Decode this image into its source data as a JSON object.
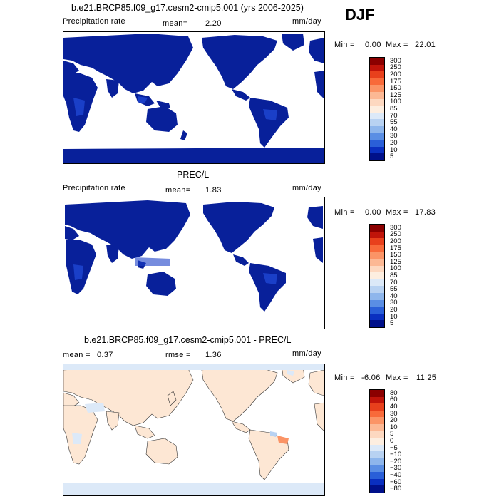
{
  "season": "DJF",
  "panels": [
    {
      "title": "b.e21.BRCP85.f09_g17.cesm2-cmip5.001 (yrs 2006-2025)",
      "left_label": "Precipitation rate",
      "mean_label": "mean=",
      "mean_value": "2.20",
      "units": "mm/day",
      "min_label": "Min =",
      "min_value": "0.00",
      "max_label": "Max =",
      "max_value": "22.01",
      "colorbar_ticks": [
        "300",
        "250",
        "200",
        "175",
        "150",
        "125",
        "100",
        "85",
        "70",
        "55",
        "40",
        "30",
        "20",
        "10",
        "5"
      ]
    },
    {
      "title": "PREC/L",
      "left_label": "Precipitation rate",
      "mean_label": "mean=",
      "mean_value": "1.83",
      "units": "mm/day",
      "min_label": "Min =",
      "min_value": "0.00",
      "max_label": "Max =",
      "max_value": "17.83",
      "colorbar_ticks": [
        "300",
        "250",
        "200",
        "175",
        "150",
        "125",
        "100",
        "85",
        "70",
        "55",
        "40",
        "30",
        "20",
        "10",
        "5"
      ]
    },
    {
      "title": "b.e21.BRCP85.f09_g17.cesm2-cmip5.001 - PREC/L",
      "mean_label": "mean =",
      "mean_value": "0.37",
      "rmse_label": "rmse =",
      "rmse_value": "1.36",
      "units": "mm/day",
      "min_label": "Min =",
      "min_value": "-6.06",
      "max_label": "Max =",
      "max_value": "11.25",
      "colorbar_ticks": [
        "80",
        "60",
        "40",
        "30",
        "20",
        "10",
        "5",
        "0",
        "−5",
        "−10",
        "−20",
        "−30",
        "−40",
        "−60",
        "−80"
      ]
    }
  ],
  "colors": {
    "abs_scale": [
      "#8b0000",
      "#c0140a",
      "#e8401c",
      "#f86a3a",
      "#fb9466",
      "#fcb894",
      "#fdd8c0",
      "#fdeee0",
      "#dce9f8",
      "#b8d2f2",
      "#8eb6ec",
      "#5a8ee4",
      "#2a5fd8",
      "#0a2fc0",
      "#00108a"
    ],
    "diff_scale": [
      "#8b0000",
      "#c0140a",
      "#e8401c",
      "#f86a3a",
      "#fb9466",
      "#fcb894",
      "#fdd8c0",
      "#fdeee0",
      "#dce9f8",
      "#b8d2f2",
      "#8eb6ec",
      "#5a8ee4",
      "#2a5fd8",
      "#0a2fc0",
      "#00108a"
    ],
    "land_precip": "#08209a",
    "land_diff": "#fde7d4",
    "ocean": "#ffffff"
  }
}
